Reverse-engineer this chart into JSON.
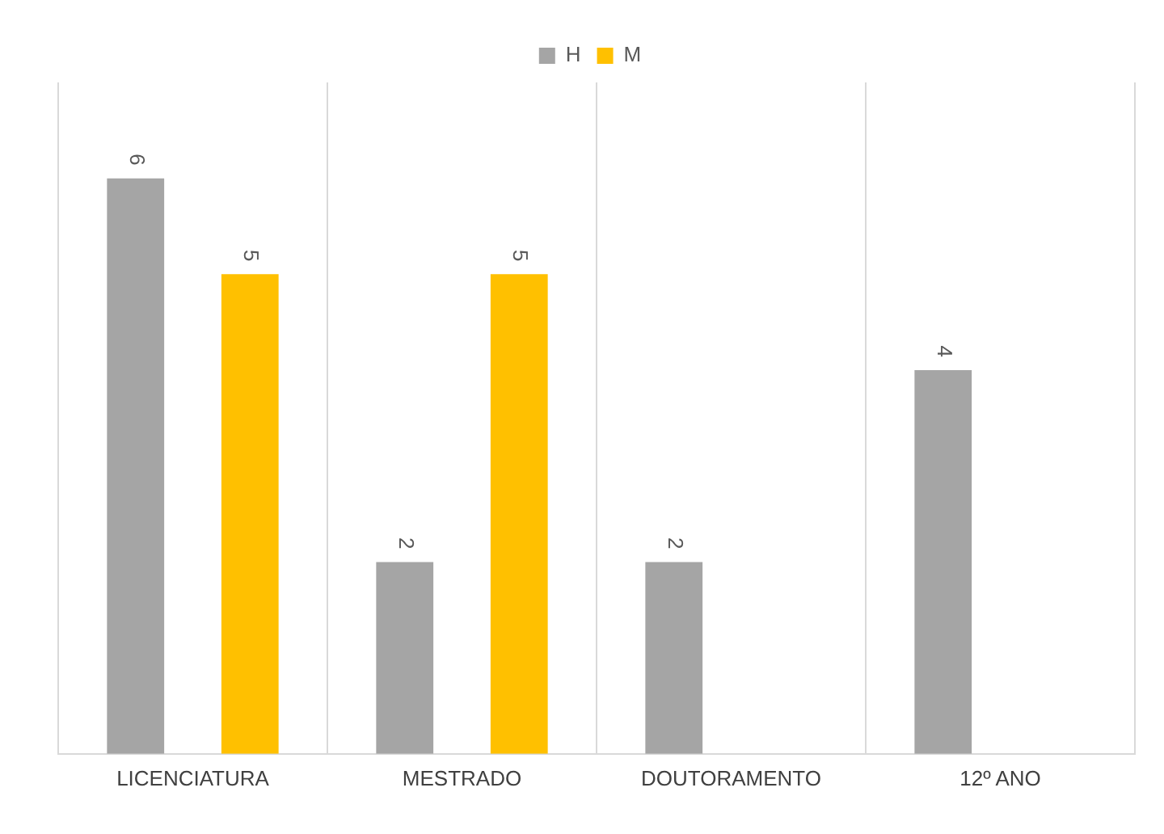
{
  "chart_data": {
    "type": "bar",
    "categories": [
      "LICENCIATURA",
      "MESTRADO",
      "DOUTORAMENTO",
      "12º ANO"
    ],
    "series": [
      {
        "name": "H",
        "color": "#a5a5a5",
        "values": [
          6,
          2,
          2,
          4
        ]
      },
      {
        "name": "M",
        "color": "#ffc000",
        "values": [
          5,
          5,
          null,
          null
        ]
      }
    ],
    "ylim": [
      0,
      7
    ],
    "grid": "x",
    "legend": "top",
    "tick_labels": "x",
    "data_labels": true
  }
}
